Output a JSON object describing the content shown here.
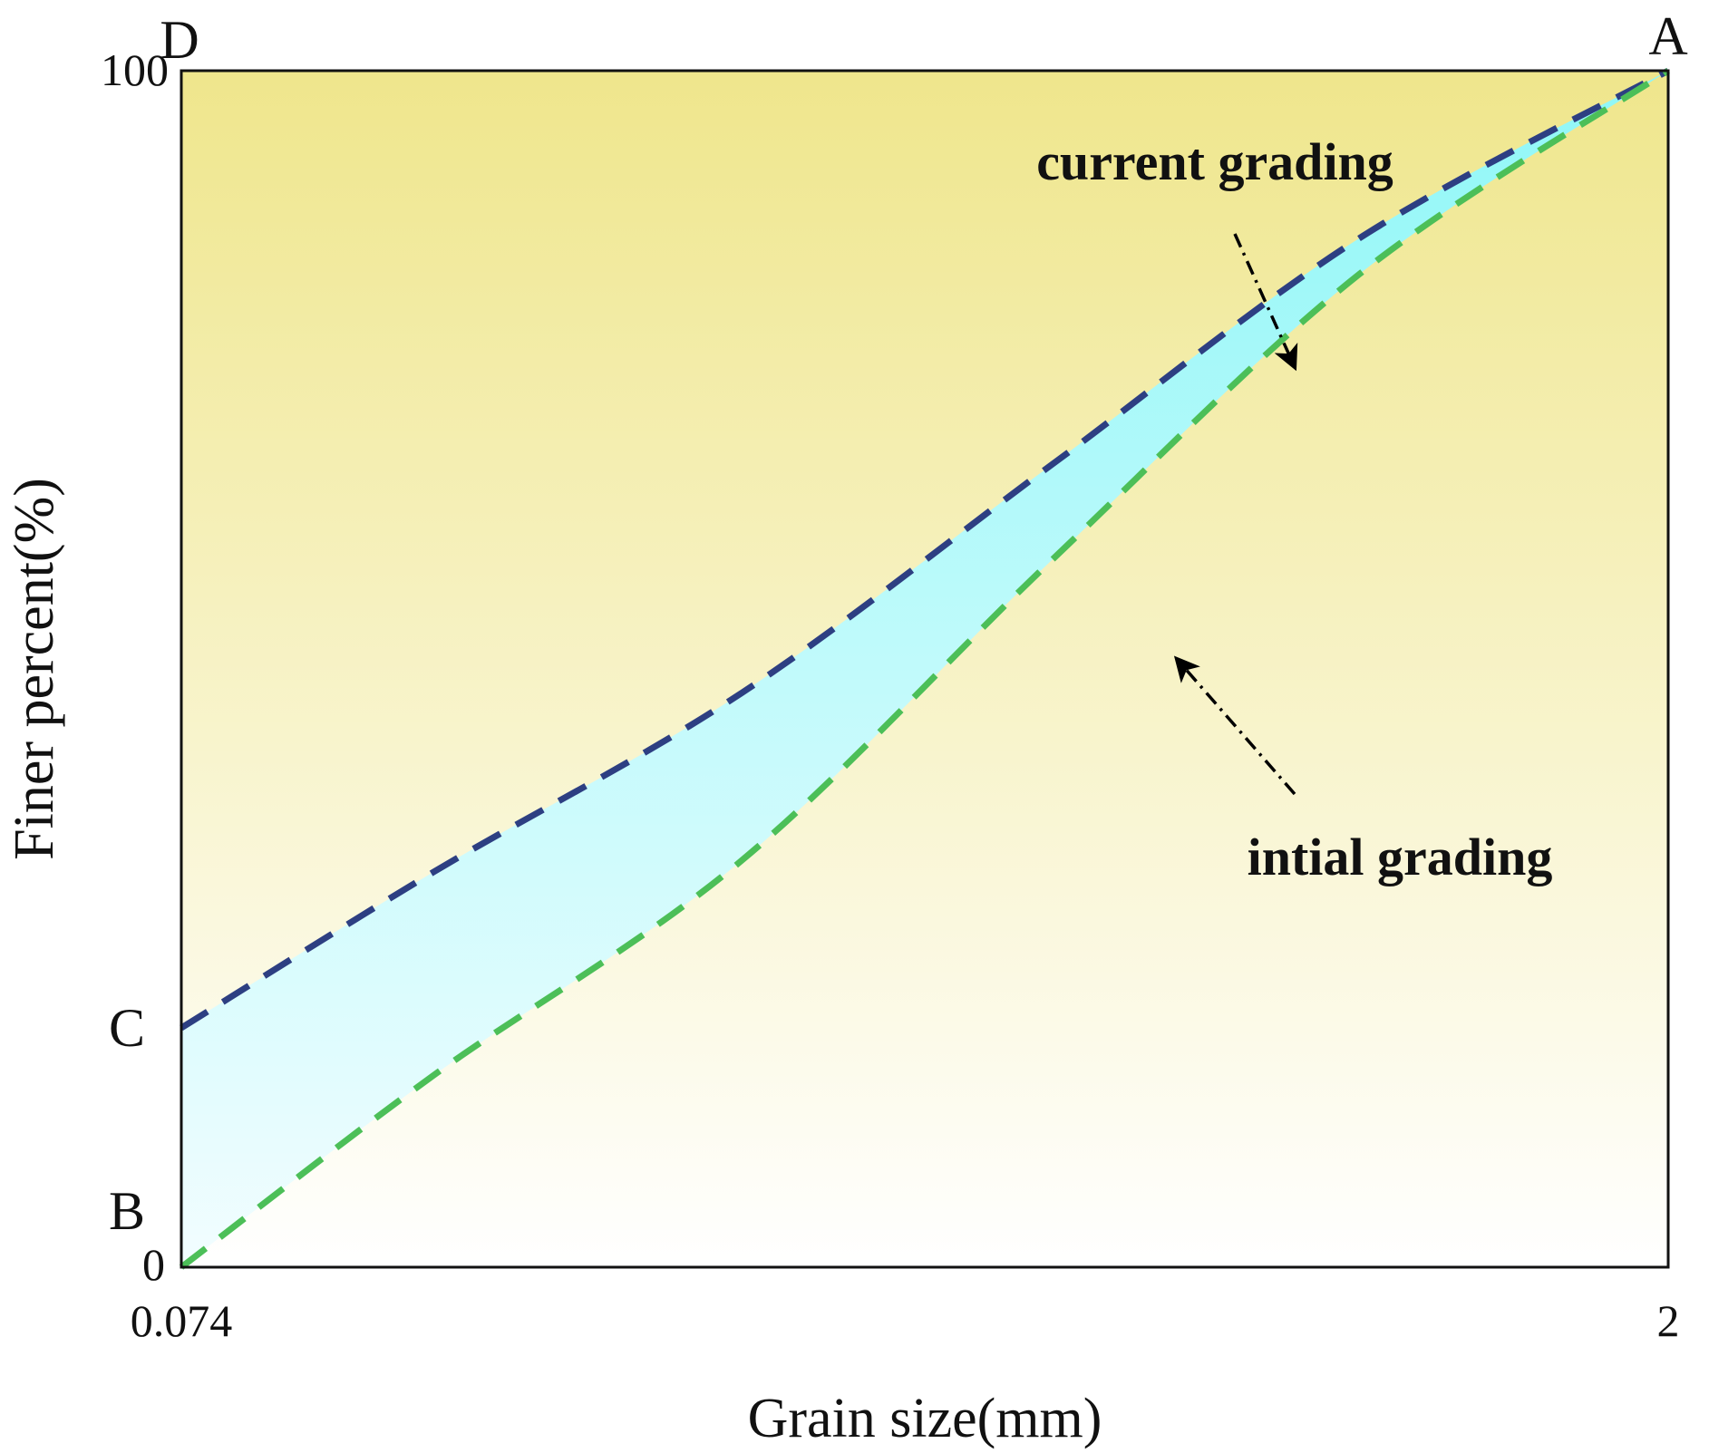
{
  "chart_data": {
    "type": "line",
    "xlabel": "Grain size(mm)",
    "ylabel": "Finer percent(%)",
    "x_ticks": [
      "0.074",
      "2"
    ],
    "y_ticks": [
      "0",
      "100"
    ],
    "xlim": [
      0.074,
      2
    ],
    "ylim": [
      0,
      100
    ],
    "corner_labels": {
      "A": "A",
      "B": "B",
      "C": "C",
      "D": "D"
    },
    "series": [
      {
        "name": "current grading",
        "color": "#2d3f82",
        "x": [
          0.074,
          0.4,
          0.8,
          1.2,
          1.6,
          2
        ],
        "y": [
          20,
          33,
          48,
          67,
          86,
          100
        ]
      },
      {
        "name": "intial grading",
        "color": "#4cbf58",
        "x": [
          0.074,
          0.4,
          0.8,
          1.2,
          1.6,
          2
        ],
        "y": [
          0,
          16,
          34,
          59,
          83,
          100
        ]
      }
    ],
    "annotations": [
      "current grading",
      "intial grading"
    ],
    "colors": {
      "background_top": "#efe68c",
      "background_bottom": "#ffffff",
      "band_top": "#8ff7f7",
      "band_bottom": "#f2fdff",
      "frame": "#111111"
    },
    "grid": false,
    "legend": "none"
  }
}
